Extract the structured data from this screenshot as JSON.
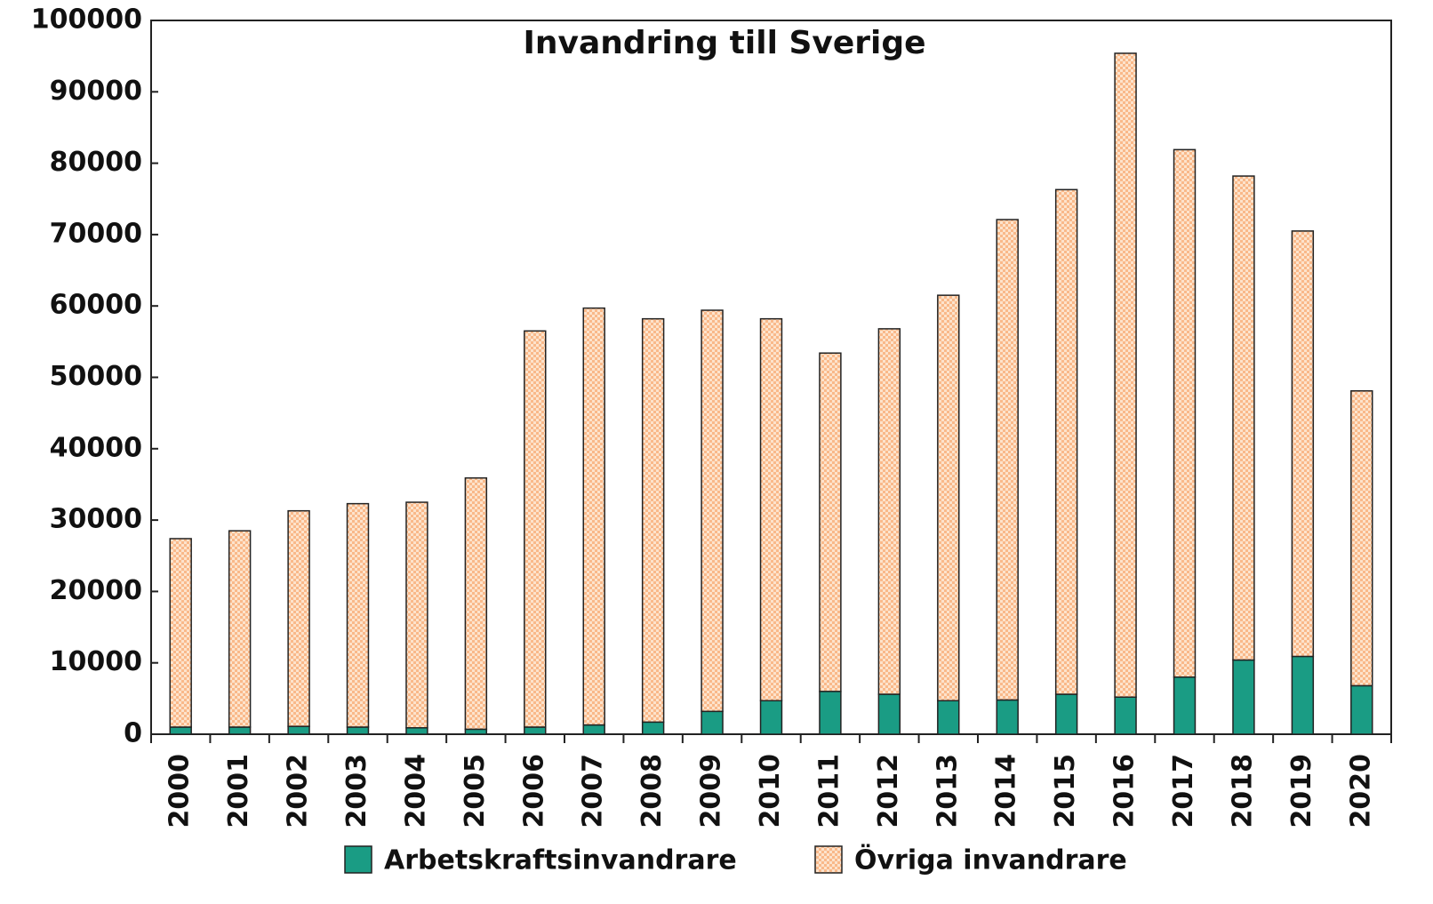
{
  "chart_data": {
    "type": "stacked_bar",
    "title": "Invandring till Sverige",
    "categories": [
      "2000",
      "2001",
      "2002",
      "2003",
      "2004",
      "2005",
      "2006",
      "2007",
      "2008",
      "2009",
      "2010",
      "2011",
      "2012",
      "2013",
      "2014",
      "2015",
      "2016",
      "2017",
      "2018",
      "2019",
      "2020"
    ],
    "series": [
      {
        "name": "Arbetskraftsinvandrare",
        "color": "#1a9c84",
        "values": [
          1000,
          1000,
          1100,
          1000,
          900,
          700,
          1000,
          1300,
          1700,
          3200,
          4700,
          6000,
          5600,
          4700,
          4800,
          5600,
          5200,
          8000,
          10400,
          10900,
          6800
        ]
      },
      {
        "name": "Övriga invandrare",
        "color": "#f9b98a",
        "values": [
          26400,
          27500,
          30200,
          31300,
          31600,
          35200,
          55500,
          58400,
          56500,
          56200,
          53500,
          47400,
          51200,
          56800,
          67300,
          70700,
          90200,
          73900,
          67800,
          59600,
          41300
        ]
      }
    ],
    "ylim": [
      0,
      100000
    ],
    "yticks": [
      0,
      10000,
      20000,
      30000,
      40000,
      50000,
      60000,
      70000,
      80000,
      90000,
      100000
    ],
    "grid": false
  }
}
